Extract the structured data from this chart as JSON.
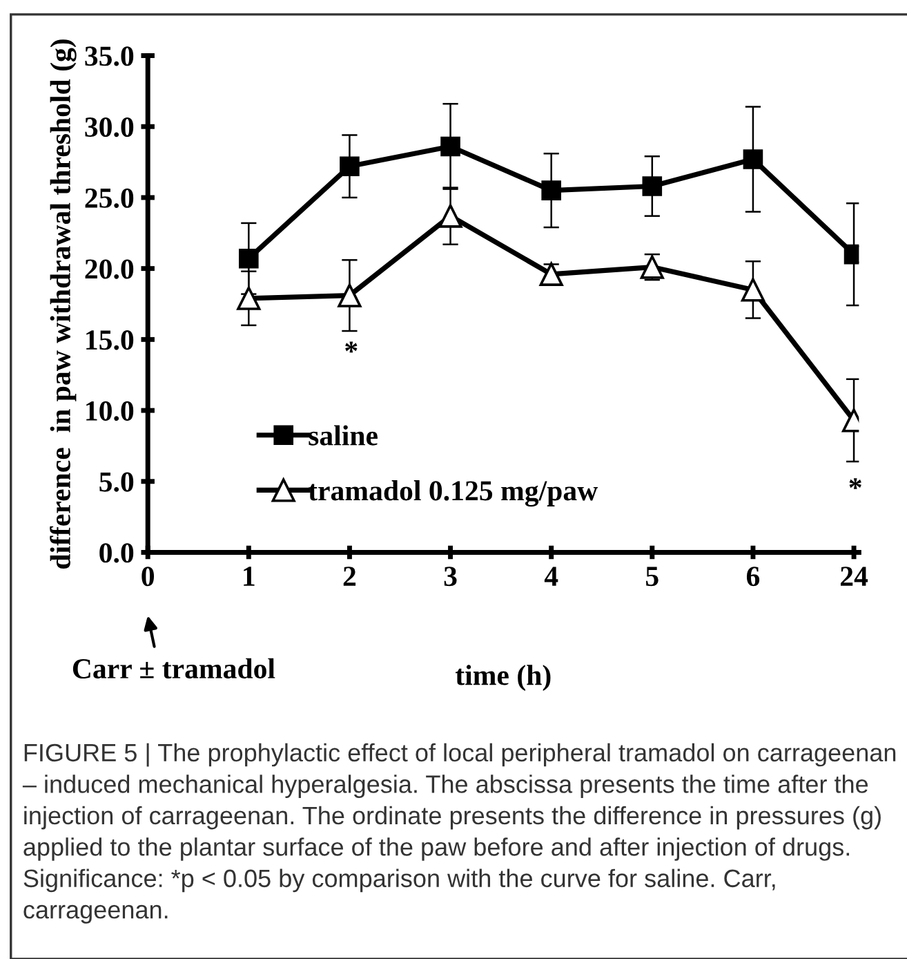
{
  "chart_data": {
    "type": "line",
    "xlabel": "time (h)",
    "ylabel": "difference  in paw withdrawal threshold (g)",
    "categories": [
      "0",
      "1",
      "2",
      "3",
      "4",
      "5",
      "6",
      "24"
    ],
    "series": [
      {
        "name": "saline",
        "color": "#000000",
        "marker": "square",
        "values": [
          null,
          20.7,
          27.2,
          28.6,
          25.5,
          25.8,
          27.7,
          21.0
        ],
        "errors": [
          null,
          2.5,
          2.2,
          3.0,
          2.6,
          2.1,
          3.7,
          3.6
        ]
      },
      {
        "name": "tramadol 0.125 mg/paw",
        "color": "#000000",
        "marker": "triangle",
        "values": [
          null,
          17.9,
          18.1,
          23.7,
          19.6,
          20.1,
          18.5,
          9.3
        ],
        "errors": [
          null,
          1.9,
          2.5,
          2.0,
          0.7,
          0.9,
          2.0,
          2.9
        ]
      }
    ],
    "ylim": [
      0,
      35
    ],
    "yticks": [
      {
        "value": 0,
        "label": "0.0"
      },
      {
        "value": 5,
        "label": "5.0"
      },
      {
        "value": 10,
        "label": "10.0"
      },
      {
        "value": 15,
        "label": "15.0"
      },
      {
        "value": 20,
        "label": "20.0"
      },
      {
        "value": 25,
        "label": "25.0"
      },
      {
        "value": 30,
        "label": "30.0"
      },
      {
        "value": 35,
        "label": "35.0"
      }
    ],
    "grid": false,
    "legend": "bottom left",
    "line_style": "solid",
    "annotations": [
      "*",
      "*",
      "Carr ± tramadol",
      "FIGURE 5 | The prophylactic effect of local peripheral tramadol on carrageenan – induced mechanical hyperalgesia. The abscissa presents the time after the injection of carrageenan. The ordinate presents the difference in pressures (g) applied to the plantar surface of the paw before and after injection of drugs. Significance: *p < 0.05 by comparison with the curve for saline. Carr, carrageenan."
    ]
  }
}
